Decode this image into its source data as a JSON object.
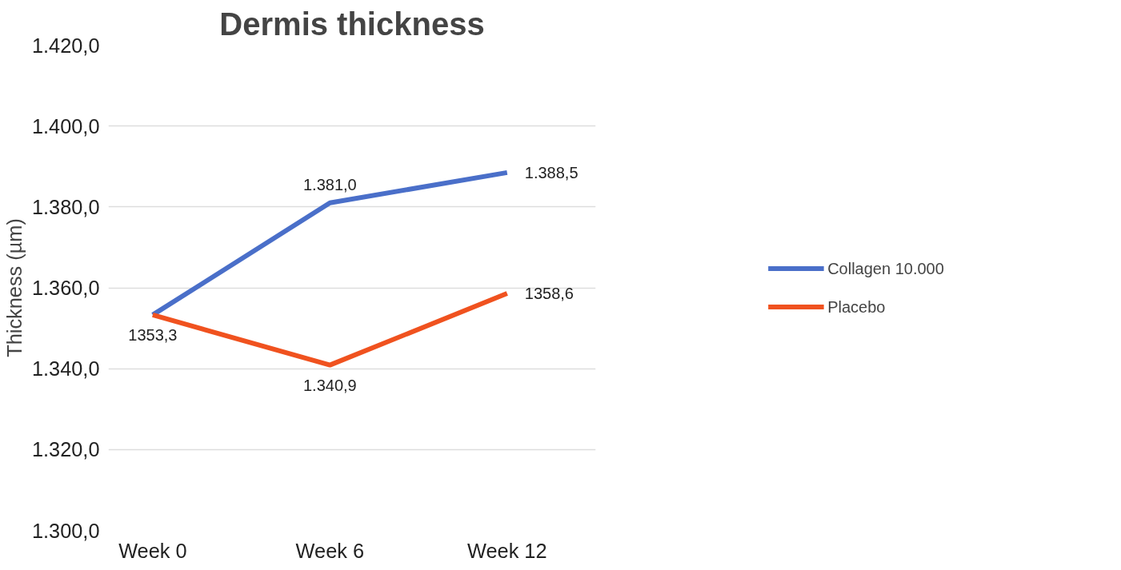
{
  "chart_data": {
    "type": "line",
    "title": "Dermis thickness",
    "ylabel": "Thickness (µm)",
    "categories": [
      "Week 0",
      "Week 6",
      "Week 12"
    ],
    "series": [
      {
        "name": "Collagen 10.000",
        "color": "#4a6fc9",
        "values": [
          1353.3,
          1381.0,
          1388.5
        ],
        "value_labels": [
          null,
          "1.381,0",
          "1.388,5"
        ]
      },
      {
        "name": "Placebo",
        "color": "#f0521f",
        "values": [
          1353.3,
          1340.9,
          1358.6
        ],
        "value_labels": [
          "1353,3",
          "1.340,9",
          "1358,6"
        ]
      }
    ],
    "ylim": [
      1300,
      1420
    ],
    "yticks": [
      {
        "value": 1300,
        "label": "1.300,0"
      },
      {
        "value": 1320,
        "label": "1.320,0"
      },
      {
        "value": 1340,
        "label": "1.340,0"
      },
      {
        "value": 1360,
        "label": "1.360,0"
      },
      {
        "value": 1380,
        "label": "1.380,0"
      },
      {
        "value": 1400,
        "label": "1.400,0"
      },
      {
        "value": 1420,
        "label": "1.420,0"
      }
    ],
    "grid": "y",
    "legend": "right",
    "marker": "none",
    "line_style": "solid"
  }
}
